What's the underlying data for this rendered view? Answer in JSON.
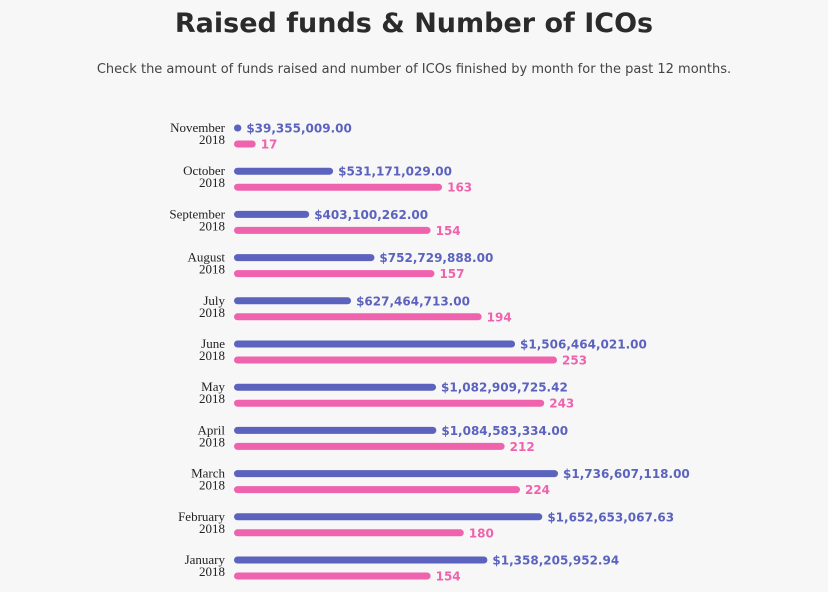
{
  "colors": {
    "funds": "#5b63be",
    "count": "#ef63ae"
  },
  "chart_data": {
    "type": "bar",
    "orientation": "horizontal",
    "title": "Raised funds & Number of ICOs",
    "subtitle": "Check the amount of funds raised and number of ICOs finished by month for the past 12 months.",
    "grid": false,
    "categories": [
      {
        "month": "November",
        "year": "2018"
      },
      {
        "month": "October",
        "year": "2018"
      },
      {
        "month": "September",
        "year": "2018"
      },
      {
        "month": "August",
        "year": "2018"
      },
      {
        "month": "July",
        "year": "2018"
      },
      {
        "month": "June",
        "year": "2018"
      },
      {
        "month": "May",
        "year": "2018"
      },
      {
        "month": "April",
        "year": "2018"
      },
      {
        "month": "March",
        "year": "2018"
      },
      {
        "month": "February",
        "year": "2018"
      },
      {
        "month": "January",
        "year": "2018"
      }
    ],
    "series": [
      {
        "key": "funds",
        "values": [
          39355009.0,
          531171029.0,
          403100262.0,
          752729888.0,
          627464713.0,
          1506464021.0,
          1082909725.42,
          1084583334.0,
          1736607118.0,
          1652653067.63,
          1358205952.94
        ],
        "labels": [
          "$39,355,009.00",
          "$531,171,029.00",
          "$403,100,262.00",
          "$752,729,888.00",
          "$627,464,713.00",
          "$1,506,464,021.00",
          "$1,082,909,725.42",
          "$1,084,583,334.00",
          "$1,736,607,118.00",
          "$1,652,653,067.63",
          "$1,358,205,952.94"
        ]
      },
      {
        "key": "count",
        "values": [
          17,
          163,
          154,
          157,
          194,
          253,
          243,
          212,
          224,
          180,
          154
        ],
        "labels": [
          "17",
          "163",
          "154",
          "157",
          "194",
          "253",
          "243",
          "212",
          "224",
          "180",
          "154"
        ]
      }
    ]
  }
}
